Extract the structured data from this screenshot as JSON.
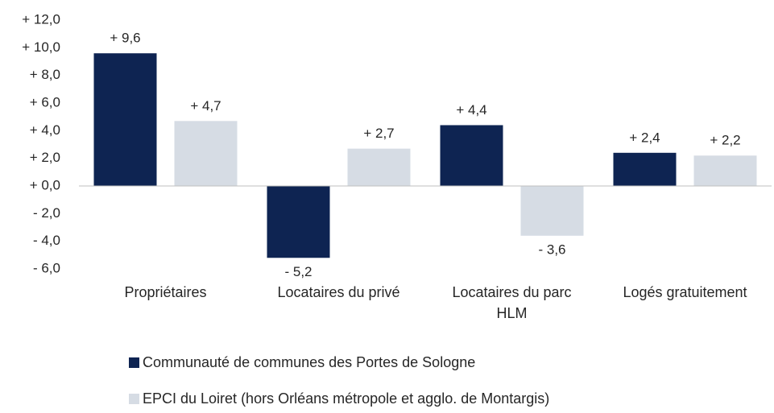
{
  "chart_data": {
    "type": "bar",
    "categories": [
      "Propriétaires",
      "Locataires du privé",
      "Locataires du parc HLM",
      "Logés gratuitement"
    ],
    "series": [
      {
        "name": "Communauté de communes des Portes de Sologne",
        "color": "#0e2452",
        "values": [
          9.6,
          -5.2,
          4.4,
          2.4
        ],
        "value_labels": [
          "+ 9,6",
          "- 5,2",
          "+ 4,4",
          "+ 2,4"
        ]
      },
      {
        "name": "EPCI du Loiret (hors Orléans métropole et agglo. de Montargis)",
        "color": "#d6dce4",
        "values": [
          4.7,
          2.7,
          -3.6,
          2.2
        ],
        "value_labels": [
          "+ 4,7",
          "+ 2,7",
          "- 3,6",
          "+ 2,2"
        ]
      }
    ],
    "ylim": [
      -6,
      12
    ],
    "yticks": [
      {
        "value": 12,
        "label": "+ 12,0"
      },
      {
        "value": 10,
        "label": "+ 10,0"
      },
      {
        "value": 8,
        "label": "+ 8,0"
      },
      {
        "value": 6,
        "label": "+ 6,0"
      },
      {
        "value": 4,
        "label": "+ 4,0"
      },
      {
        "value": 2,
        "label": "+ 2,0"
      },
      {
        "value": 0,
        "label": "+ 0,0"
      },
      {
        "value": -2,
        "label": "- 2,0"
      },
      {
        "value": -4,
        "label": "- 4,0"
      },
      {
        "value": -6,
        "label": "- 6,0"
      }
    ],
    "grid": false,
    "legend": "bottom"
  }
}
